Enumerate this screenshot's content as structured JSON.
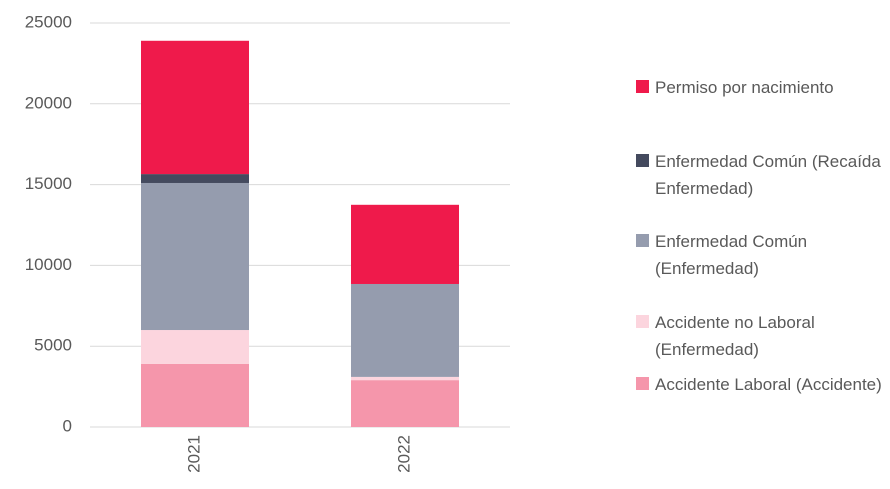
{
  "chart_data": {
    "type": "stacked_bar",
    "categories": [
      "2021",
      "2022"
    ],
    "series": [
      {
        "name": "Accidente Laboral (Accidente)",
        "color": "#f596ab",
        "values": [
          3900,
          2900
        ]
      },
      {
        "name": "Accidente no Laboral (Enfermedad)",
        "color": "#fcd5de",
        "values": [
          2100,
          200
        ]
      },
      {
        "name": "Enfermedad Común (Enfermedad)",
        "color": "#959cae",
        "values": [
          9100,
          5750
        ]
      },
      {
        "name": "Enfermedad Común (Recaída Enfermedad)",
        "color": "#444a5e",
        "values": [
          550,
          0
        ]
      },
      {
        "name": "Permiso por nacimiento",
        "color": "#ef1a4b",
        "values": [
          8250,
          4900
        ]
      }
    ],
    "ylim": [
      0,
      25000
    ],
    "yticks": [
      0,
      5000,
      10000,
      15000,
      20000,
      25000
    ],
    "grid": true,
    "legend": "right"
  }
}
